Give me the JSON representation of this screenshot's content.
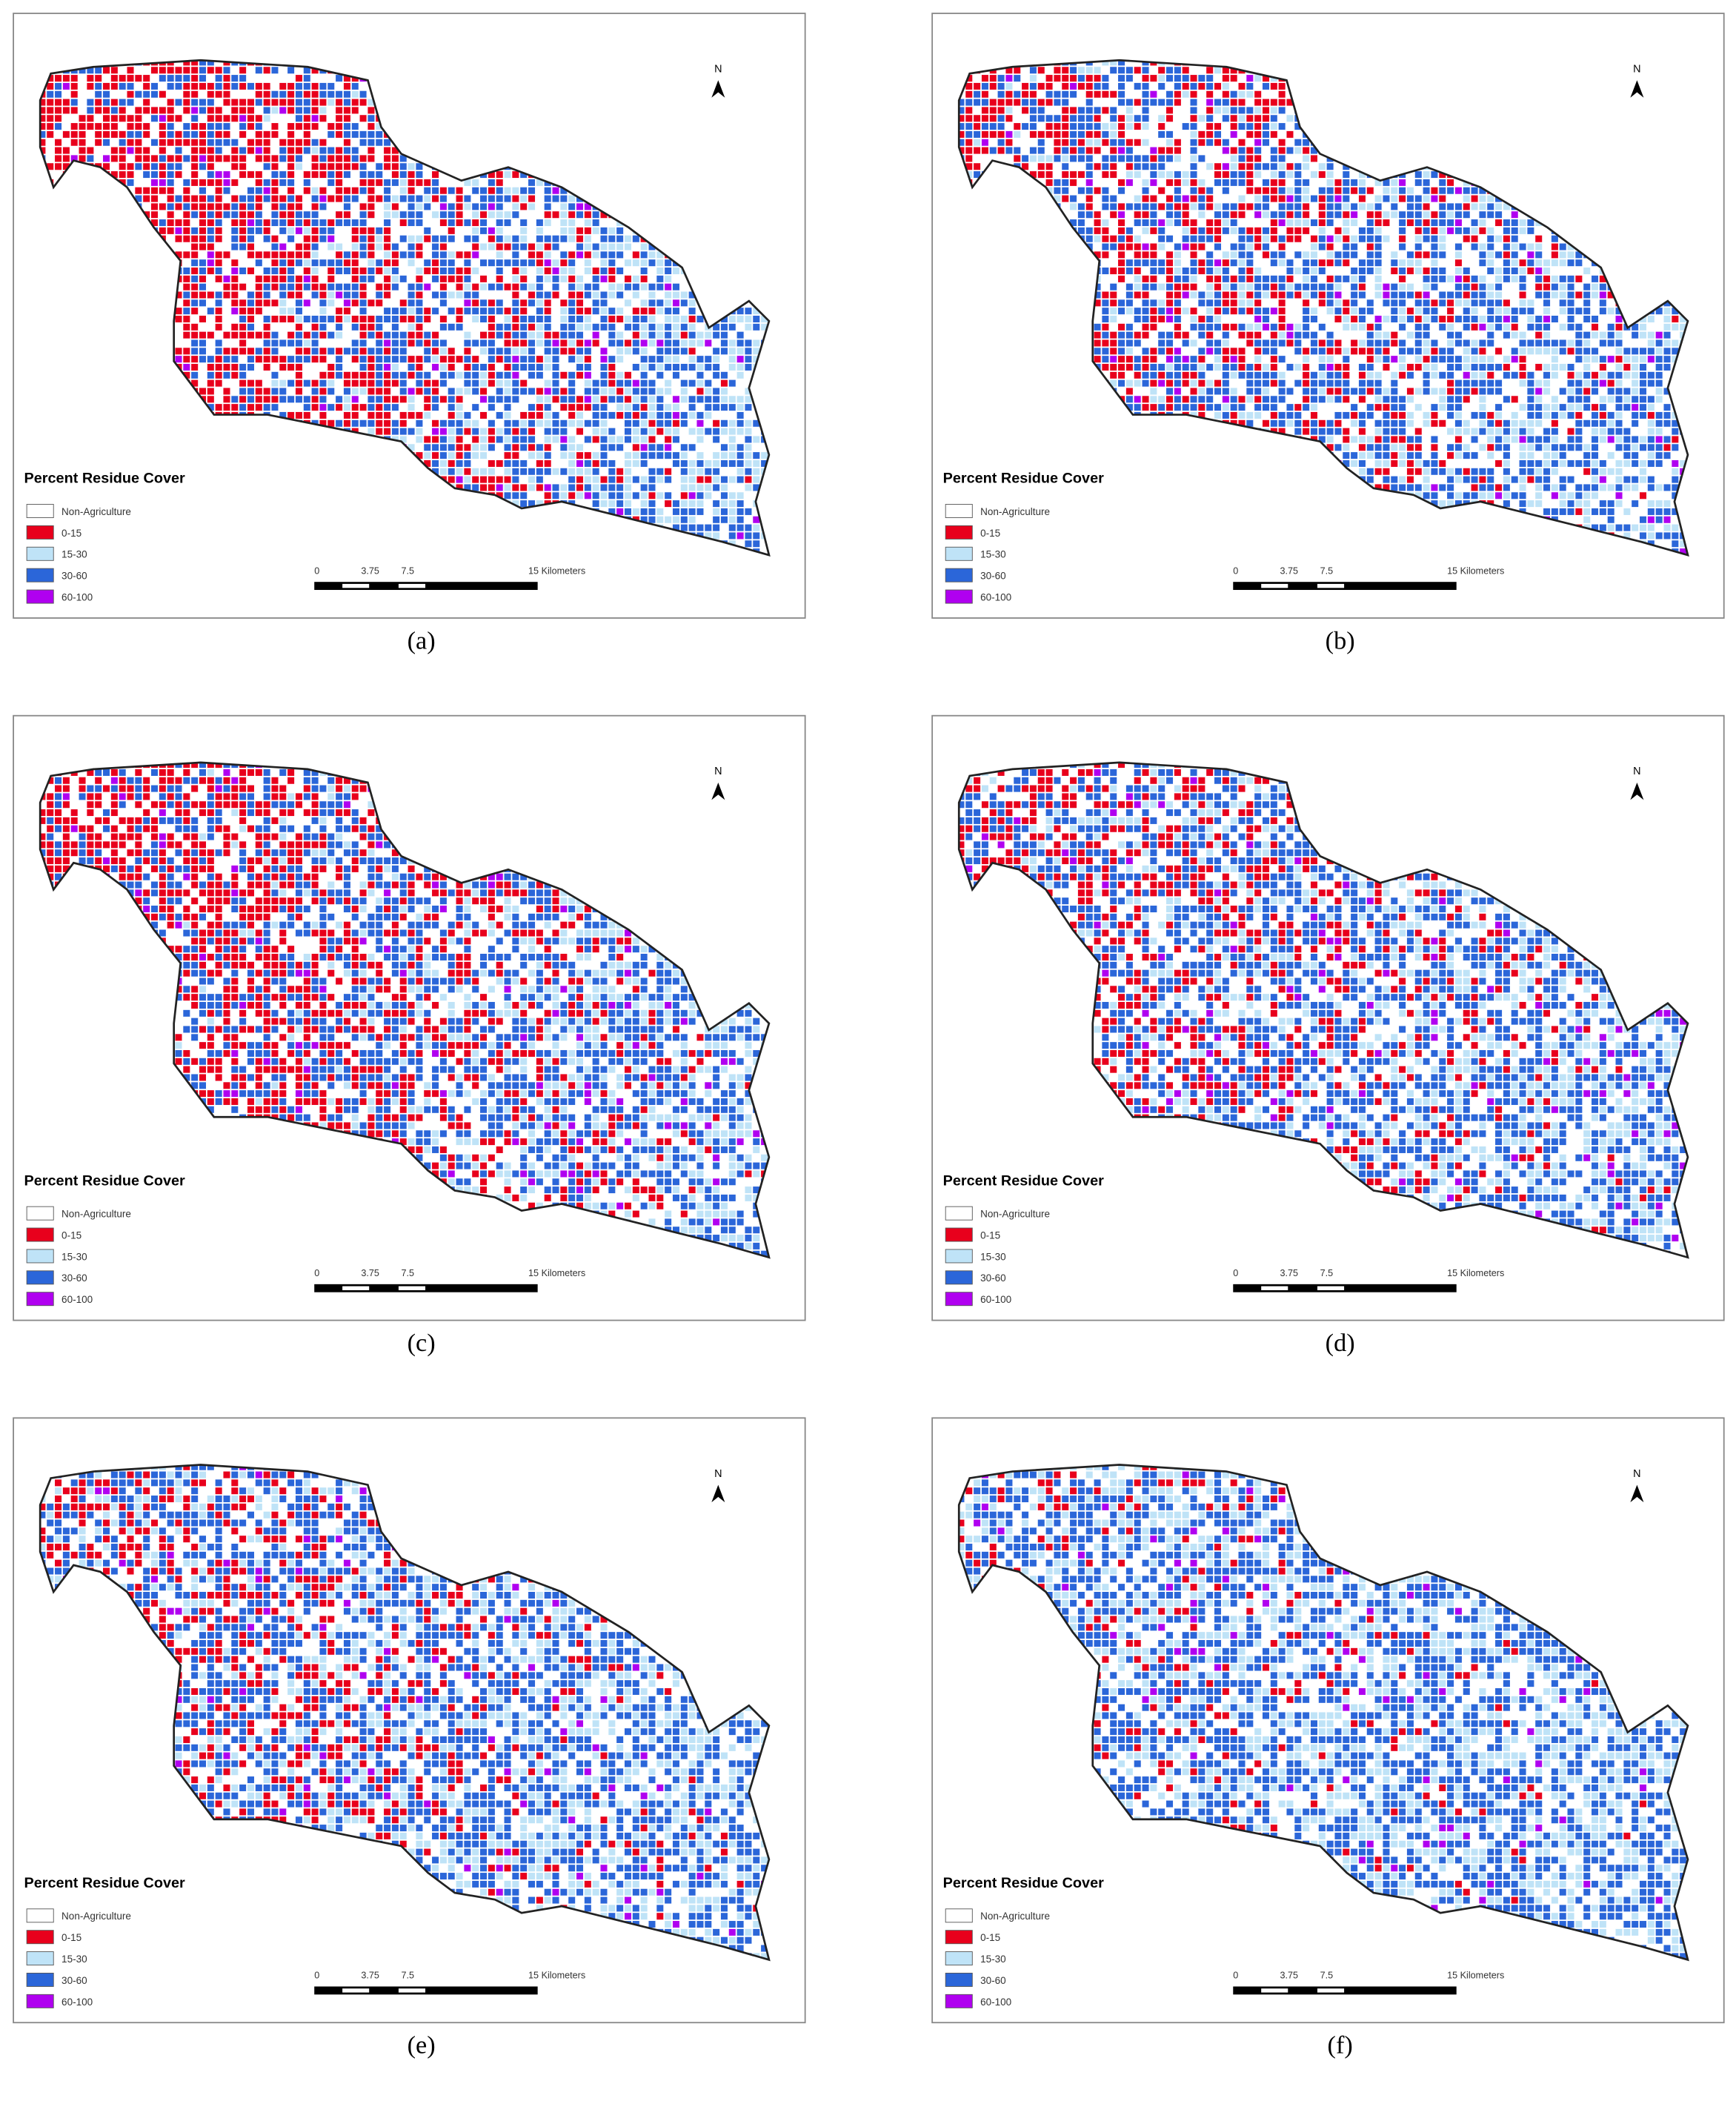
{
  "legend": {
    "title": "Percent Residue Cover",
    "items": [
      {
        "label": "Non-Agriculture",
        "color": "#ffffff"
      },
      {
        "label": "0-15",
        "color": "#e8001c"
      },
      {
        "label": "15-30",
        "color": "#bfe3f7"
      },
      {
        "label": "30-60",
        "color": "#2b66d9"
      },
      {
        "label": "60-100",
        "color": "#b000f0"
      }
    ]
  },
  "scale_bar": {
    "labels": [
      "0",
      "3.75",
      "7.5",
      "15 Kilometers"
    ]
  },
  "north": "N",
  "panels": [
    {
      "caption": "(a)"
    },
    {
      "caption": "(b)"
    },
    {
      "caption": "(c)"
    },
    {
      "caption": "(d)"
    },
    {
      "caption": "(e)"
    },
    {
      "caption": "(f)"
    }
  ]
}
